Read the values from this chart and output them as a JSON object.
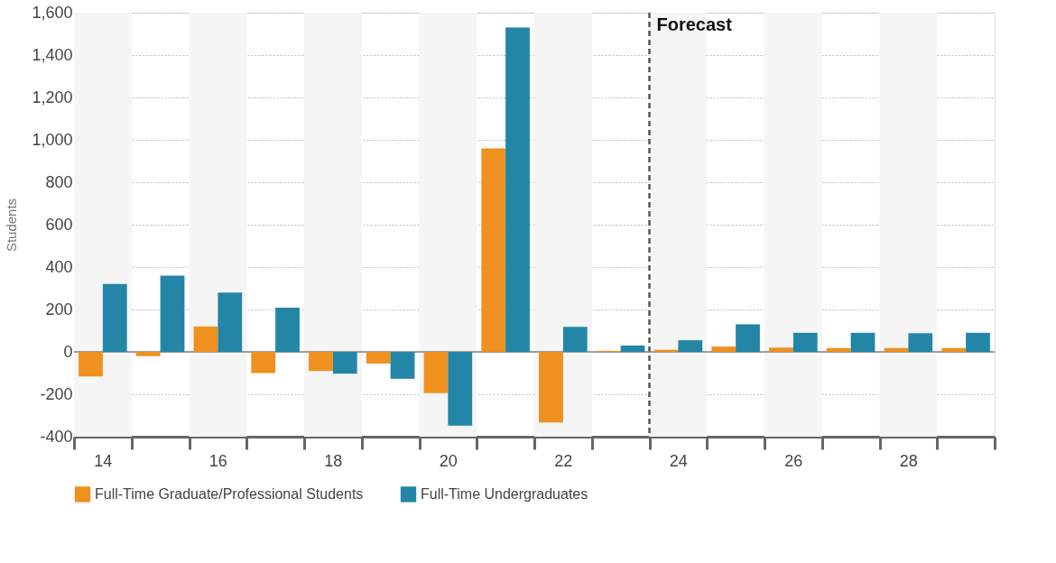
{
  "chart_data": {
    "type": "bar",
    "ylabel": "Students",
    "x": [
      14,
      15,
      16,
      17,
      18,
      19,
      20,
      21,
      22,
      23,
      24,
      25,
      26,
      27,
      28,
      29
    ],
    "xlim": [
      13.5,
      29.5
    ],
    "xticks": [
      {
        "value": 13.5,
        "label": null
      },
      14,
      {
        "value": 14.5,
        "label": null
      },
      {
        "value": 15.5,
        "label": null
      },
      16,
      {
        "value": 16.5,
        "label": null
      },
      {
        "value": 17.5,
        "label": null
      },
      18,
      {
        "value": 18.5,
        "label": null
      },
      {
        "value": 19.5,
        "label": null
      },
      20,
      {
        "value": 20.5,
        "label": null
      },
      {
        "value": 21.5,
        "label": null
      },
      22,
      {
        "value": 22.5,
        "label": null
      },
      {
        "value": 23.5,
        "label": null
      },
      24,
      {
        "value": 24.5,
        "label": null
      },
      {
        "value": 25.5,
        "label": null
      },
      26,
      {
        "value": 26.5,
        "label": null
      },
      {
        "value": 27.5,
        "label": null
      },
      28,
      {
        "value": 28.5,
        "label": null
      },
      {
        "value": 29.5,
        "label": null
      }
    ],
    "ylim": [
      -400,
      1600
    ],
    "yticks": [
      -400,
      -200,
      0,
      200,
      400,
      600,
      800,
      {
        "value": 1000,
        "label": "1,000"
      },
      {
        "value": 1200,
        "label": "1,200"
      },
      {
        "value": 1400,
        "label": "1,400"
      },
      {
        "value": 1600,
        "label": "1,600"
      }
    ],
    "grid": "y",
    "legend": "bottom",
    "series": [
      {
        "name": "Full-Time Graduate/Professional Students",
        "color": "#f0901f",
        "values": [
          -116,
          -20,
          120,
          -100,
          -90,
          -55,
          -195,
          960,
          -333,
          5,
          10,
          25,
          20,
          18,
          18,
          18
        ]
      },
      {
        "name": "Full-Time Undergraduates",
        "color": "#2386a6",
        "values": [
          320,
          360,
          280,
          208,
          -103,
          -127,
          -348,
          1530,
          118,
          30,
          55,
          130,
          90,
          90,
          88,
          90
        ]
      }
    ],
    "ref_lines": [
      {
        "axis": "x",
        "value": 23.5,
        "label": "Forecast",
        "color": "#555555",
        "line_style": "dashed"
      },
      {
        "axis": "y",
        "value": 0,
        "label": null,
        "color": "#808080",
        "line_style": "solid"
      }
    ],
    "bands": [
      {
        "axis": "x",
        "from": 13.5,
        "to": 14.5,
        "label": null,
        "color": "#f5f5f5"
      },
      {
        "axis": "x",
        "from": 15.5,
        "to": 16.5,
        "label": null,
        "color": "#f5f5f5"
      },
      {
        "axis": "x",
        "from": 17.5,
        "to": 18.5,
        "label": null,
        "color": "#f5f5f5"
      },
      {
        "axis": "x",
        "from": 19.5,
        "to": 20.5,
        "label": null,
        "color": "#f5f5f5"
      },
      {
        "axis": "x",
        "from": 21.5,
        "to": 22.5,
        "label": null,
        "color": "#f5f5f5"
      },
      {
        "axis": "x",
        "from": 23.5,
        "to": 24.5,
        "label": null,
        "color": "#f5f5f5"
      },
      {
        "axis": "x",
        "from": 25.5,
        "to": 26.5,
        "label": null,
        "color": "#f5f5f5"
      },
      {
        "axis": "x",
        "from": 27.5,
        "to": 28.5,
        "label": null,
        "color": "#f5f5f5"
      }
    ]
  }
}
